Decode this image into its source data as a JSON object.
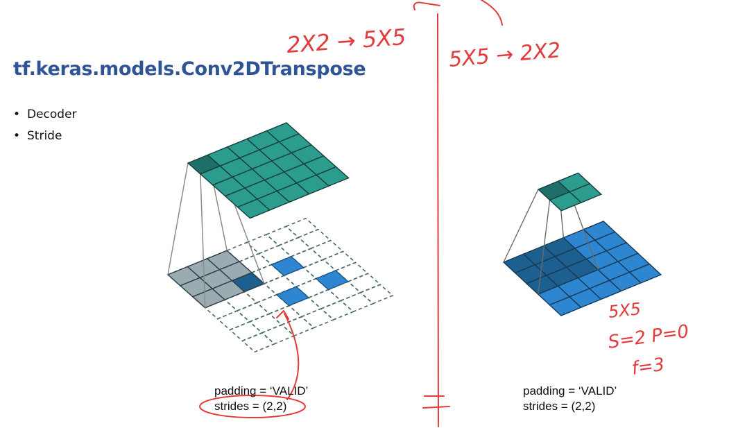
{
  "slide": {
    "title": "tf.keras.models.Conv2DTranspose",
    "bullets": [
      "Decoder",
      "Stride"
    ]
  },
  "left_figure": {
    "padding_label": "padding = ‘VALID’",
    "strides_label": "strides = (2,2)"
  },
  "right_figure": {
    "padding_label": "padding = ‘VALID’",
    "strides_label": "strides = (2,2)"
  },
  "annotations": {
    "left_note": "2X2 → 5X5",
    "right_note": "5X5 → 2X2",
    "size_note": "5X5",
    "params_note": "S=2  P=0",
    "filter_note": "f=3"
  },
  "colors": {
    "title": "#2f5496",
    "teal": "#2b9c8e",
    "teal_dark": "#1e6e6a",
    "blue": "#2e86d1",
    "blue_dark": "#1d5f8f",
    "gray": "#9aacb2",
    "ink": "#e23b3b"
  }
}
